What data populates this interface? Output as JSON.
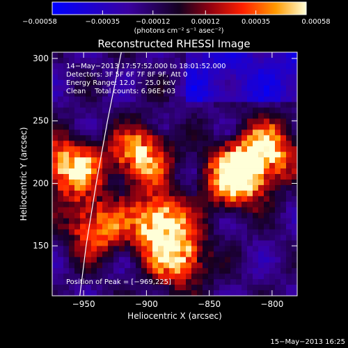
{
  "chart_data": {
    "type": "heatmap",
    "title": "Reconstructed RHESSI Image",
    "xlabel": "Heliocentric X (arcsec)",
    "ylabel": "Heliocentric Y (arcsec)",
    "xlim": [
      -975,
      -780
    ],
    "ylim": [
      110,
      305
    ],
    "xticks": [
      -950,
      -900,
      -850,
      -800
    ],
    "yticks": [
      150,
      200,
      250,
      300
    ],
    "xtick_labels": [
      "−950",
      "−900",
      "−850",
      "−800"
    ],
    "ytick_labels": [
      "150",
      "200",
      "250",
      "300"
    ],
    "colorbar": {
      "range": [
        -0.00058,
        0.00058
      ],
      "ticks": [
        -0.00058,
        -0.00035,
        -0.00012,
        0.00012,
        0.00035,
        0.00058
      ],
      "tick_labels": [
        "−0.00058",
        "−0.00035",
        "−0.00012",
        "0.00012",
        "0.00035",
        "0.00058"
      ],
      "unit_label": "(photons cm⁻² s⁻¹ asec⁻²)"
    },
    "annotations": {
      "time_range": "14−May−2013 17:57:52.000 to 18:01:52.000",
      "detectors": "Detectors: 3F 5F 6F 7F 8F 9F, Att 0",
      "energy": "Energy Range: 12.0 − 25.0 keV",
      "clean": "Clean    Total counts: 6.96E+03",
      "peak": "Position of Peak = [−969,225]"
    },
    "peak_position": [
      -969,
      225
    ],
    "limb": [
      [
        -920,
        305
      ],
      [
        -931,
        250
      ],
      [
        -940,
        200
      ],
      [
        -948,
        150
      ],
      [
        -953,
        110
      ]
    ],
    "bright_regions": [
      {
        "x": -960,
        "y": 212,
        "level": 0.65
      },
      {
        "x": -905,
        "y": 222,
        "level": 0.6
      },
      {
        "x": -890,
        "y": 168,
        "level": 0.7
      },
      {
        "x": -830,
        "y": 205,
        "level": 0.75
      },
      {
        "x": -805,
        "y": 225,
        "level": 0.65
      },
      {
        "x": -875,
        "y": 140,
        "level": 0.55
      },
      {
        "x": -940,
        "y": 165,
        "level": 0.5
      }
    ]
  },
  "footer": {
    "timestamp": "15−May−2013 16:25"
  }
}
